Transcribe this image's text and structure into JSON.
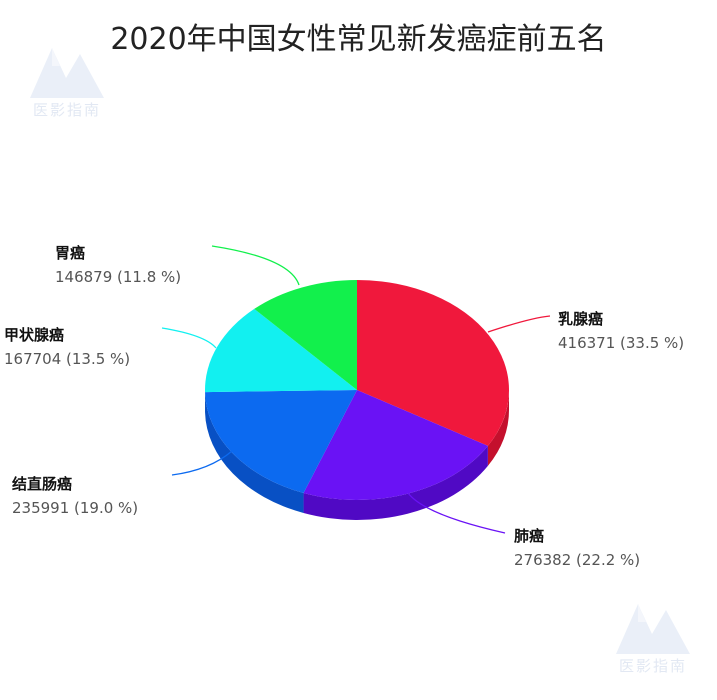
{
  "chart_data": {
    "type": "pie",
    "title": "2020年中国女性常见新发癌症前五名",
    "slices": [
      {
        "name": "乳腺癌",
        "value": 416371,
        "percent": "33.5 %",
        "color": "#f0183c",
        "side_color": "#c4102d"
      },
      {
        "name": "肺癌",
        "value": 276382,
        "percent": "22.2 %",
        "color": "#6a12f5",
        "side_color": "#5009c4"
      },
      {
        "name": "结直肠癌",
        "value": 235991,
        "percent": "19.0 %",
        "color": "#0c6af0",
        "side_color": "#0850c4"
      },
      {
        "name": "甲状腺癌",
        "value": 167704,
        "percent": "13.5 %",
        "color": "#12f0f0",
        "side_color": "#0bc0c0"
      },
      {
        "name": "胃癌",
        "value": 146879,
        "percent": "11.8 %",
        "color": "#12f04c",
        "side_color": "#0bc03a"
      }
    ]
  },
  "watermark": {
    "text": "医影指南"
  }
}
